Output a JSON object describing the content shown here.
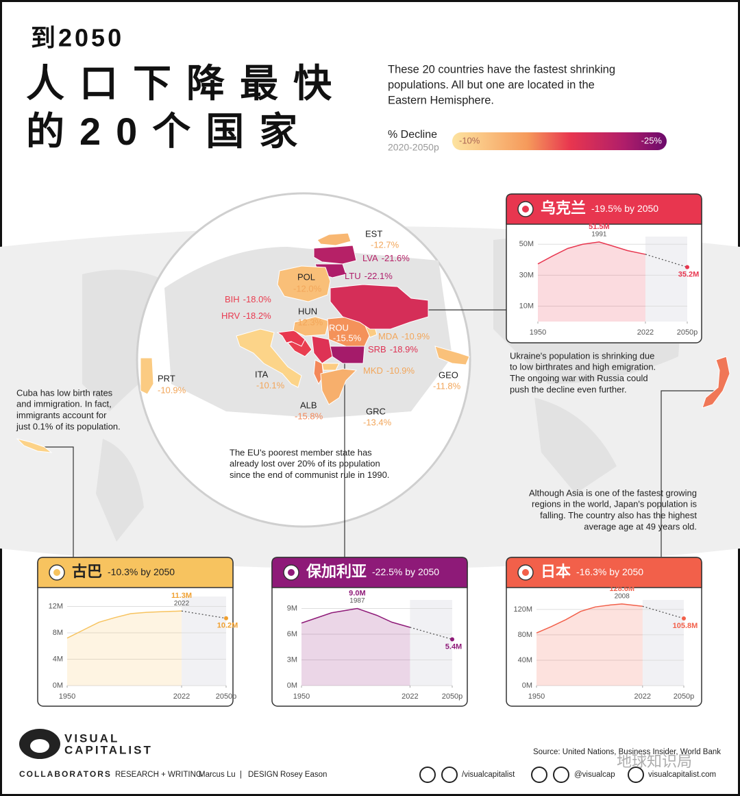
{
  "header": {
    "title": [
      "到2050",
      "人口下降最快",
      "的20个国家"
    ],
    "intro": [
      "These 20 countries have the fastest shrinking",
      "populations. All but one are located in the",
      "Eastern Hemisphere."
    ],
    "legend": {
      "title": "% Decline",
      "subtitle": "2020-2050p",
      "min": {
        "value": -10,
        "label": "-10%"
      },
      "max": {
        "value": -25,
        "label": "-25%"
      }
    }
  },
  "countries": [
    {
      "code": "EST",
      "value": -12.7,
      "label": "-12.7%"
    },
    {
      "code": "LVA",
      "value": -21.6,
      "label": "-21.6%"
    },
    {
      "code": "LTU",
      "value": -22.1,
      "label": "-22.1%"
    },
    {
      "code": "POL",
      "value": -12.0,
      "label": "-12.0%"
    },
    {
      "code": "BIH",
      "value": -18.0,
      "label": "-18.0%"
    },
    {
      "code": "HRV",
      "value": -18.2,
      "label": "-18.2%"
    },
    {
      "code": "HUN",
      "value": -12.3,
      "label": "-12.3%"
    },
    {
      "code": "ROU",
      "value": -15.5,
      "label": "-15.5%"
    },
    {
      "code": "MDA",
      "value": -10.9,
      "label": "-10.9%"
    },
    {
      "code": "SRB",
      "value": -18.9,
      "label": "-18.9%"
    },
    {
      "code": "MKD",
      "value": -10.9,
      "label": "-10.9%"
    },
    {
      "code": "ALB",
      "value": -15.8,
      "label": "-15.8%"
    },
    {
      "code": "GRC",
      "value": -13.4,
      "label": "-13.4%"
    },
    {
      "code": "ITA",
      "value": -10.1,
      "label": "-10.1%"
    },
    {
      "code": "PRT",
      "value": -10.9,
      "label": "-10.9%"
    },
    {
      "code": "GEO",
      "value": -11.8,
      "label": "-11.8%"
    }
  ],
  "notes": {
    "cuba": [
      "Cuba has low birth rates",
      "and immigration. In fact,",
      "immigrants account for",
      "just 0.1% of its population."
    ],
    "ukraine": [
      "Ukraine's population is shrinking due",
      "to low birthrates and high emigration.",
      "The ongoing war with Russia could",
      "push the decline even further."
    ],
    "bulgaria": [
      "The EU's poorest member state has",
      "already  lost over 20% of its population",
      "since the end of communist rule in 1990."
    ],
    "japan": [
      "Although Asia is one of the fastest growing",
      "regions in the world, Japan's population is",
      "falling. The country also has the  highest",
      "average age at 49 years old."
    ]
  },
  "chart_data": [
    {
      "type": "line",
      "title": "乌克兰",
      "decline": {
        "value": -19.5,
        "label": "-19.5% by 2050"
      },
      "color": "#e8364f",
      "x": [
        1950,
        1960,
        1970,
        1980,
        1991,
        2000,
        2010,
        2022,
        2050
      ],
      "values": [
        37.3,
        42.5,
        47.3,
        50.0,
        51.5,
        48.9,
        45.9,
        43.5,
        35.2
      ],
      "value_labels": [
        null,
        null,
        null,
        null,
        "51.5M",
        null,
        null,
        null,
        "35.2M"
      ],
      "projection_start": 2022,
      "xlim": [
        1950,
        2050
      ],
      "xticks": [
        1950,
        2022,
        {
          "value": 2050,
          "label": "2050p"
        }
      ],
      "ylim": [
        0,
        55
      ],
      "yticks": [
        {
          "value": 10,
          "label": "10M"
        },
        {
          "value": 30,
          "label": "30M"
        },
        {
          "value": 50,
          "label": "50M"
        }
      ],
      "grid": true
    },
    {
      "type": "line",
      "title": "古巴",
      "decline": {
        "value": -10.3,
        "label": "-10.3% by 2050"
      },
      "color": "#f7c35f",
      "x": [
        1950,
        1960,
        1970,
        1980,
        1990,
        2000,
        2010,
        2022,
        2050
      ],
      "values": [
        7.2,
        8.4,
        9.6,
        10.3,
        10.9,
        11.1,
        11.2,
        11.3,
        10.2
      ],
      "value_labels": [
        null,
        null,
        null,
        null,
        null,
        null,
        null,
        "11.3M",
        "10.2M"
      ],
      "projection_start": 2022,
      "xlim": [
        1950,
        2050
      ],
      "xticks": [
        1950,
        2022,
        {
          "value": 2050,
          "label": "2050p"
        }
      ],
      "ylim": [
        0,
        13.5
      ],
      "yticks": [
        {
          "value": 0,
          "label": "0M"
        },
        {
          "value": 4,
          "label": "4M"
        },
        {
          "value": 8,
          "label": "8M"
        },
        {
          "value": 12,
          "label": "12M"
        }
      ],
      "grid": true
    },
    {
      "type": "line",
      "title": "保加利亚",
      "decline": {
        "value": -22.5,
        "label": "-22.5% by 2050"
      },
      "color": "#8e1a78",
      "x": [
        1950,
        1960,
        1970,
        1987,
        2000,
        2010,
        2022,
        2050
      ],
      "values": [
        7.3,
        7.9,
        8.5,
        9.0,
        8.2,
        7.4,
        6.8,
        5.4
      ],
      "value_labels": [
        null,
        null,
        null,
        "9.0M",
        null,
        null,
        null,
        "5.4M"
      ],
      "projection_start": 2022,
      "xlim": [
        1950,
        2050
      ],
      "xticks": [
        1950,
        2022,
        {
          "value": 2050,
          "label": "2050p"
        }
      ],
      "ylim": [
        0,
        10
      ],
      "yticks": [
        {
          "value": 0,
          "label": "0M"
        },
        {
          "value": 3,
          "label": "3M"
        },
        {
          "value": 6,
          "label": "6M"
        },
        {
          "value": 9,
          "label": "9M"
        }
      ],
      "grid": true
    },
    {
      "type": "line",
      "title": "日本",
      "decline": {
        "value": -16.3,
        "label": "-16.3% by 2050"
      },
      "color": "#f2604a",
      "x": [
        1950,
        1960,
        1970,
        1980,
        1990,
        2000,
        2008,
        2022,
        2050
      ],
      "values": [
        83,
        93,
        104,
        117,
        124,
        127,
        128.6,
        125,
        105.8
      ],
      "value_labels": [
        null,
        null,
        null,
        null,
        null,
        null,
        "128.6M",
        null,
        "105.8M"
      ],
      "projection_start": 2022,
      "xlim": [
        1950,
        2050
      ],
      "xticks": [
        1950,
        2022,
        {
          "value": 2050,
          "label": "2050p"
        }
      ],
      "ylim": [
        0,
        135
      ],
      "yticks": [
        {
          "value": 0,
          "label": "0M"
        },
        {
          "value": 40,
          "label": "40M"
        },
        {
          "value": 80,
          "label": "80M"
        },
        {
          "value": 120,
          "label": "120M"
        }
      ],
      "grid": true
    }
  ],
  "footer": {
    "logo": [
      "VISUAL",
      "CAPITALIST"
    ],
    "collaborators": "COLLABORATORS",
    "research_role": "RESEARCH + WRITING",
    "research_name": "Marcus Lu",
    "separator": "|",
    "design_role": "DESIGN",
    "design_name": "Rosey Eason",
    "source": "Source: United Nations, Business Insider, World Bank",
    "social": [
      "/visualcapitalist",
      "@visualcap",
      "visualcapitalist.com"
    ],
    "watermark": "地球知识局"
  }
}
